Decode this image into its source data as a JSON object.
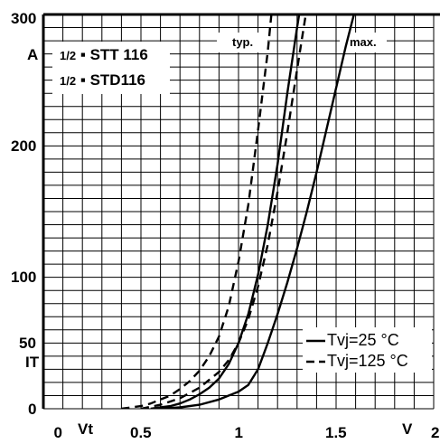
{
  "chart_data": {
    "type": "line",
    "title_lines": [
      {
        "frac": "1/2",
        "name": "STT 116"
      },
      {
        "frac": "1/2",
        "name": "STD116"
      }
    ],
    "xlabel": "Vt",
    "xunit": "V",
    "ylabel": "IT",
    "yunit": "A",
    "xlim": [
      0,
      2
    ],
    "ylim": [
      0,
      300
    ],
    "x_ticks": [
      {
        "value": 0,
        "label": "0"
      },
      {
        "value": 0.5,
        "label": "0.5"
      },
      {
        "value": 1,
        "label": "1"
      },
      {
        "value": 1.5,
        "label": "1.5"
      },
      {
        "value": 2,
        "label": "2"
      }
    ],
    "y_ticks": [
      {
        "value": 0,
        "label": "0"
      },
      {
        "value": 50,
        "label": "50"
      },
      {
        "value": 100,
        "label": "100"
      },
      {
        "value": 200,
        "label": "200"
      },
      {
        "value": 300,
        "label": "300"
      }
    ],
    "grid": true,
    "annotations": [
      "typ.",
      "max."
    ],
    "legend": {
      "placement": "bottom-right",
      "entries": [
        {
          "label": "Tvj=25 °C",
          "style": "solid"
        },
        {
          "label": "Tvj=125 °C",
          "style": "dashed"
        }
      ]
    },
    "series": [
      {
        "group": "typ.",
        "temp": "Tvj=25 °C",
        "style": "solid",
        "points": [
          [
            0.55,
            0
          ],
          [
            0.6,
            1
          ],
          [
            0.65,
            2
          ],
          [
            0.7,
            4
          ],
          [
            0.75,
            7
          ],
          [
            0.8,
            11
          ],
          [
            0.85,
            16
          ],
          [
            0.9,
            23
          ],
          [
            0.95,
            34
          ],
          [
            1.0,
            50
          ],
          [
            1.05,
            72
          ],
          [
            1.1,
            102
          ],
          [
            1.15,
            140
          ],
          [
            1.2,
            186
          ],
          [
            1.25,
            240
          ],
          [
            1.3,
            290
          ],
          [
            1.33,
            318
          ]
        ]
      },
      {
        "group": "typ.",
        "temp": "Tvj=125 °C",
        "style": "dashed",
        "points": [
          [
            0.4,
            0
          ],
          [
            0.45,
            1
          ],
          [
            0.5,
            2
          ],
          [
            0.55,
            4
          ],
          [
            0.6,
            7
          ],
          [
            0.65,
            10
          ],
          [
            0.7,
            15
          ],
          [
            0.75,
            21
          ],
          [
            0.8,
            29
          ],
          [
            0.85,
            40
          ],
          [
            0.9,
            55
          ],
          [
            0.95,
            78
          ],
          [
            1.0,
            112
          ],
          [
            1.05,
            155
          ],
          [
            1.1,
            212
          ],
          [
            1.15,
            272
          ],
          [
            1.18,
            318
          ]
        ]
      },
      {
        "group": "max.",
        "temp": "Tvj=25 °C",
        "style": "solid",
        "points": [
          [
            0.6,
            0
          ],
          [
            0.7,
            1
          ],
          [
            0.8,
            3
          ],
          [
            0.9,
            7
          ],
          [
            1.0,
            13
          ],
          [
            1.05,
            18
          ],
          [
            1.1,
            30
          ],
          [
            1.15,
            50
          ],
          [
            1.2,
            72
          ],
          [
            1.25,
            96
          ],
          [
            1.3,
            122
          ],
          [
            1.35,
            150
          ],
          [
            1.4,
            180
          ],
          [
            1.45,
            212
          ],
          [
            1.5,
            244
          ],
          [
            1.55,
            276
          ],
          [
            1.6,
            305
          ],
          [
            1.64,
            325
          ]
        ]
      },
      {
        "group": "max.",
        "temp": "Tvj=125 °C",
        "style": "dashed",
        "points": [
          [
            0.5,
            0
          ],
          [
            0.6,
            3
          ],
          [
            0.7,
            8
          ],
          [
            0.8,
            16
          ],
          [
            0.9,
            28
          ],
          [
            0.95,
            37
          ],
          [
            1.0,
            50
          ],
          [
            1.05,
            68
          ],
          [
            1.1,
            93
          ],
          [
            1.15,
            125
          ],
          [
            1.2,
            165
          ],
          [
            1.25,
            210
          ],
          [
            1.3,
            258
          ],
          [
            1.35,
            305
          ],
          [
            1.38,
            328
          ]
        ]
      }
    ]
  }
}
